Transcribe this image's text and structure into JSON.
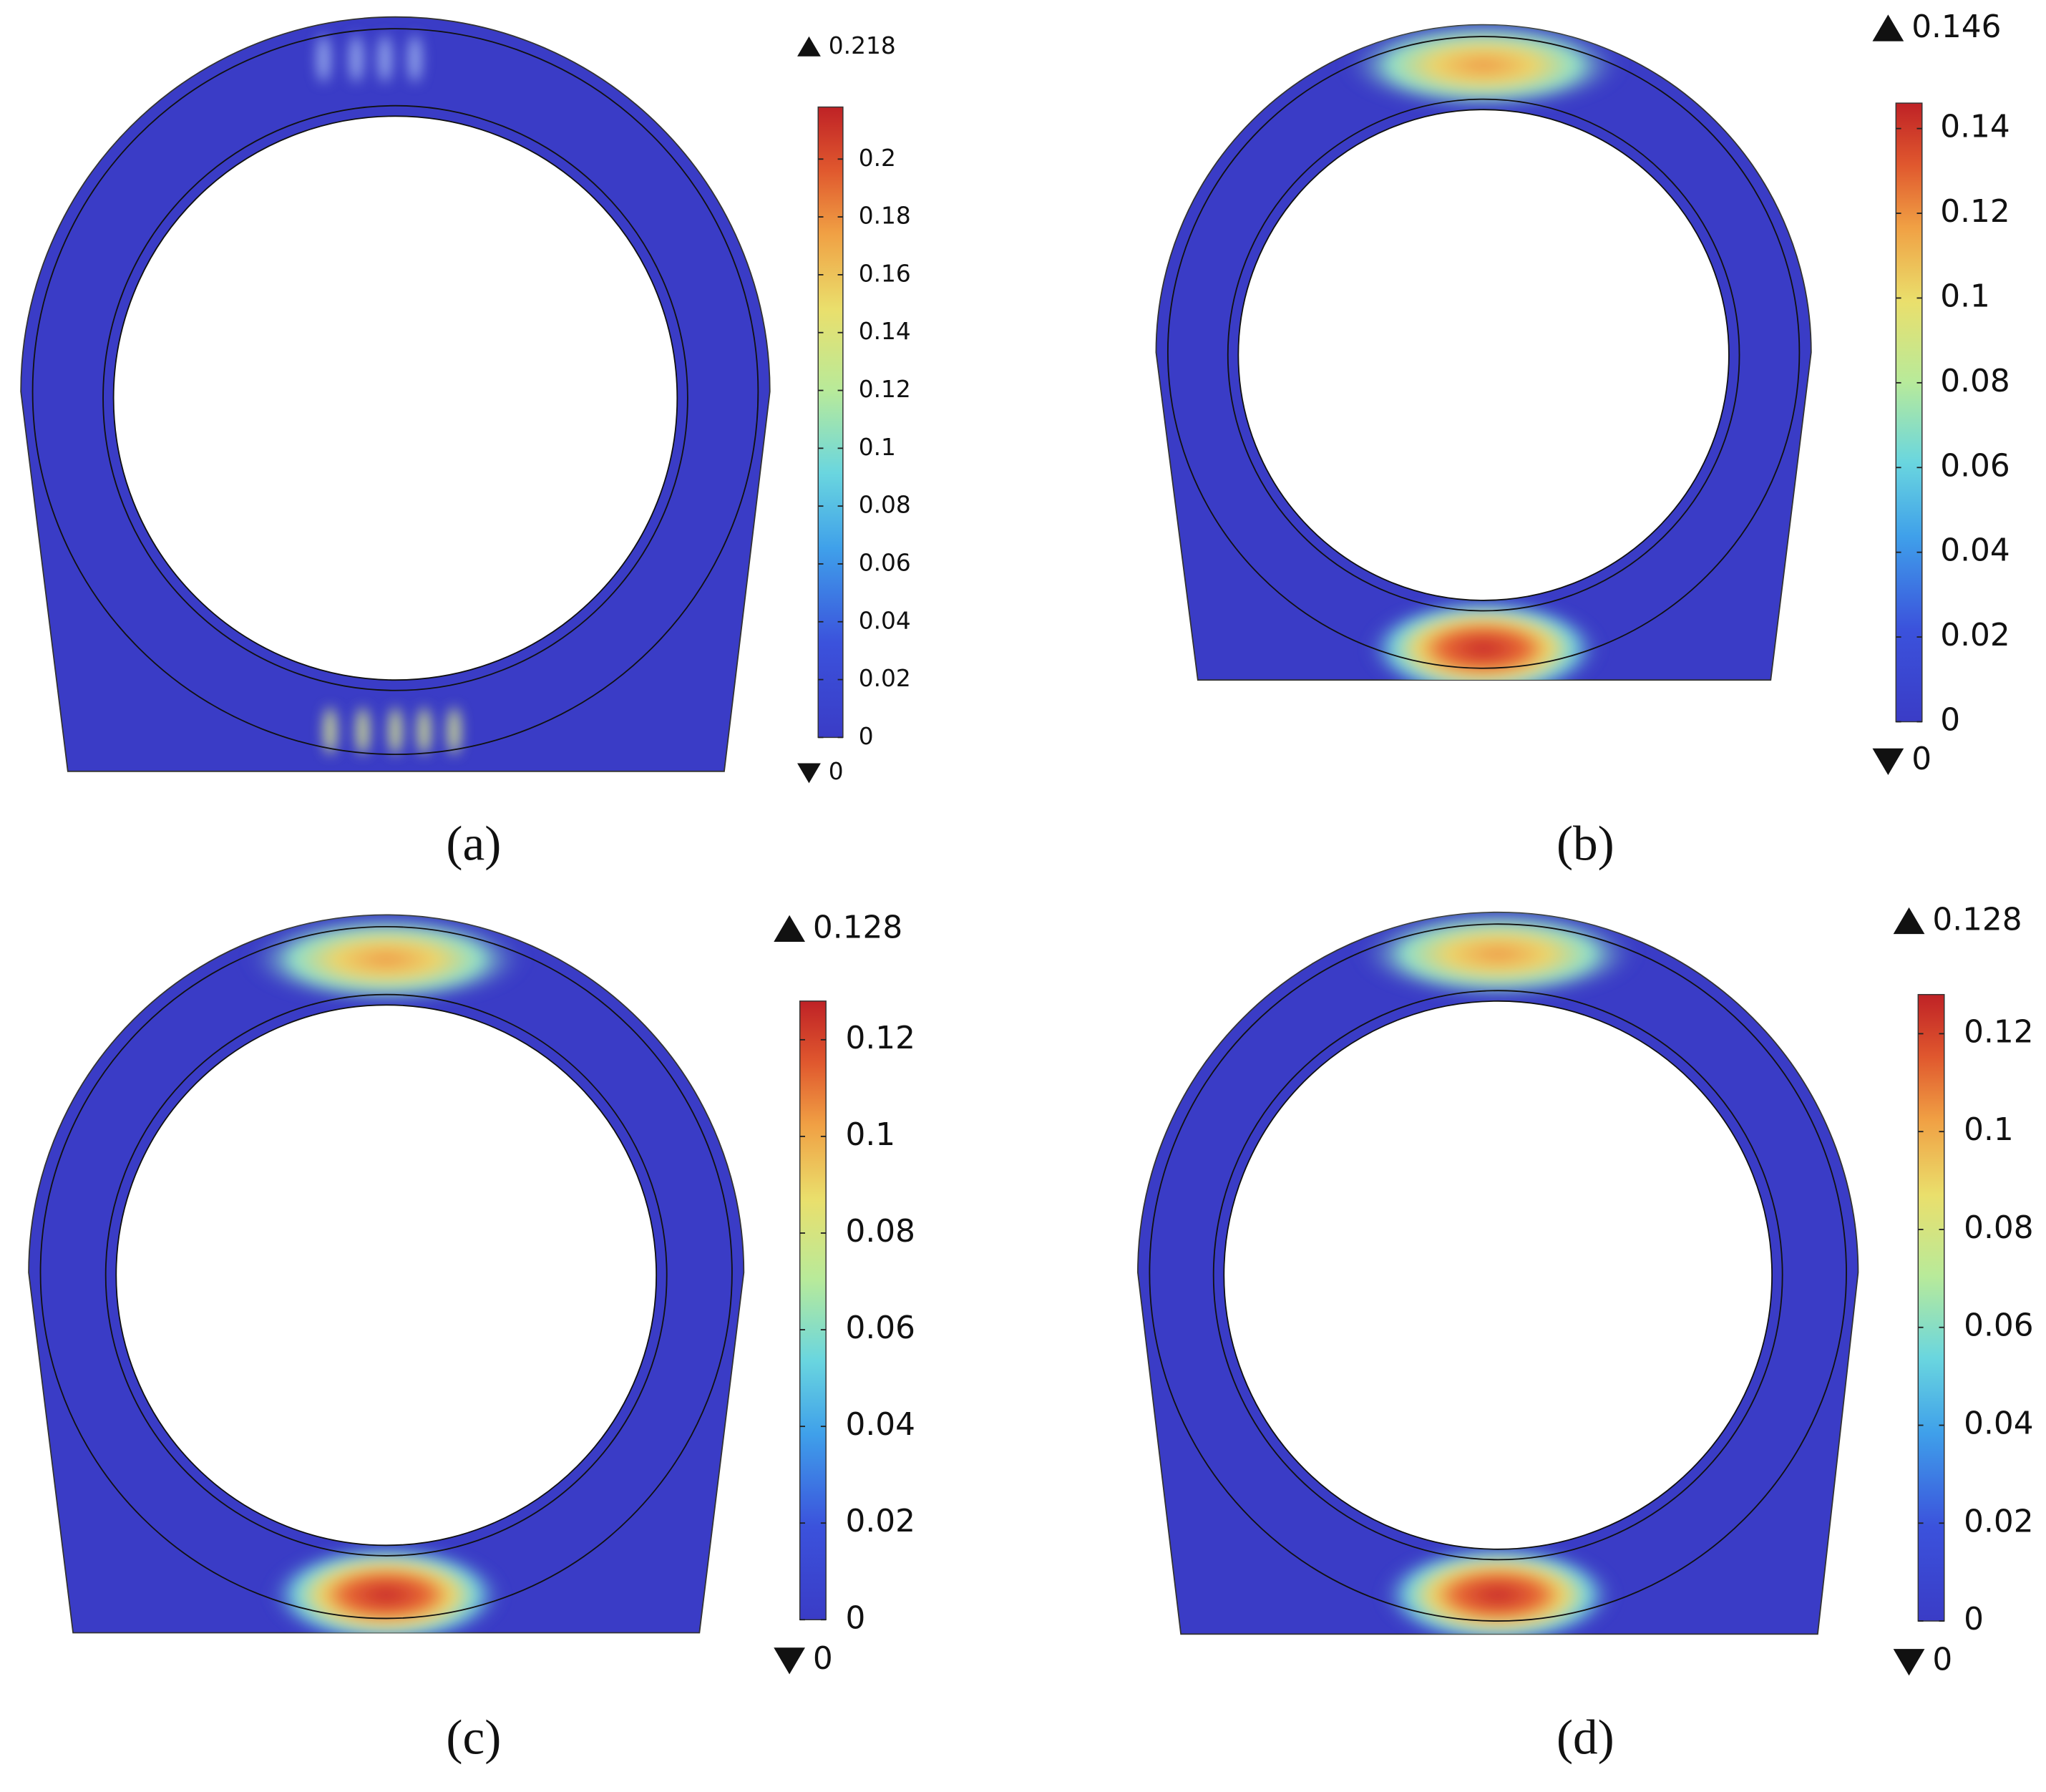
{
  "chart_data": [
    {
      "type": "contour",
      "label": "(a)",
      "colormap": "jet",
      "clim": [
        0,
        0.218
      ],
      "cticks": [
        0,
        0.02,
        0.04,
        0.06,
        0.08,
        0.1,
        0.12,
        0.14,
        0.16,
        0.18,
        0.2
      ]
    },
    {
      "type": "contour",
      "label": "(b)",
      "colormap": "jet",
      "clim": [
        0,
        0.146
      ],
      "cticks": [
        0,
        0.02,
        0.04,
        0.06,
        0.08,
        0.1,
        0.12,
        0.14
      ]
    },
    {
      "type": "contour",
      "label": "(c)",
      "colormap": "jet",
      "clim": [
        0,
        0.128
      ],
      "cticks": [
        0,
        0.02,
        0.04,
        0.06,
        0.08,
        0.1,
        0.12
      ]
    },
    {
      "type": "contour",
      "label": "(d)",
      "colormap": "jet",
      "clim": [
        0,
        0.128
      ],
      "cticks": [
        0,
        0.02,
        0.04,
        0.06,
        0.08,
        0.1,
        0.12
      ]
    }
  ]
}
